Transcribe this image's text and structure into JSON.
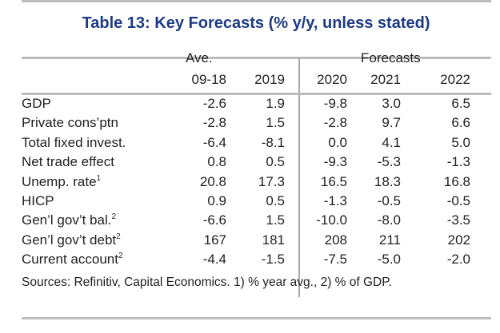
{
  "title": "Table 13: Key Forecasts (% y/y, unless stated)",
  "header": {
    "ave": "Ave.",
    "forecasts": "Forecasts",
    "columns": [
      "09-18",
      "2019",
      "2020",
      "2021",
      "2022"
    ]
  },
  "rows": [
    {
      "label": "GDP",
      "sup": "",
      "values": [
        "-2.6",
        "1.9",
        "-9.8",
        "3.0",
        "6.5"
      ]
    },
    {
      "label": "Private cons’ptn",
      "sup": "",
      "values": [
        "-2.8",
        "1.5",
        "-2.8",
        "9.7",
        "6.6"
      ]
    },
    {
      "label": "Total fixed invest.",
      "sup": "",
      "values": [
        "-6.4",
        "-8.1",
        "0.0",
        "4.1",
        "5.0"
      ]
    },
    {
      "label": "Net trade effect",
      "sup": "",
      "values": [
        "0.8",
        "0.5",
        "-9.3",
        "-5.3",
        "-1.3"
      ]
    },
    {
      "label": "Unemp. rate",
      "sup": "1",
      "values": [
        "20.8",
        "17.3",
        "16.5",
        "18.3",
        "16.8"
      ]
    },
    {
      "label": "HICP",
      "sup": "",
      "values": [
        "0.9",
        "0.5",
        "-1.3",
        "-0.5",
        "-0.5"
      ]
    },
    {
      "label": "Gen’l gov’t bal.",
      "sup": "2",
      "values": [
        "-6.6",
        "1.5",
        "-10.0",
        "-8.0",
        "-3.5"
      ]
    },
    {
      "label": "Gen’l gov’t debt",
      "sup": "2",
      "values": [
        "167",
        "181",
        "208",
        "211",
        "202"
      ]
    },
    {
      "label": "Current account",
      "sup": "2",
      "values": [
        "-4.4",
        "-1.5",
        "-7.5",
        "-5.0",
        "-2.0"
      ]
    }
  ],
  "source": "Sources: Refinitiv, Capital Economics. 1) % year avg., 2) % of GDP."
}
